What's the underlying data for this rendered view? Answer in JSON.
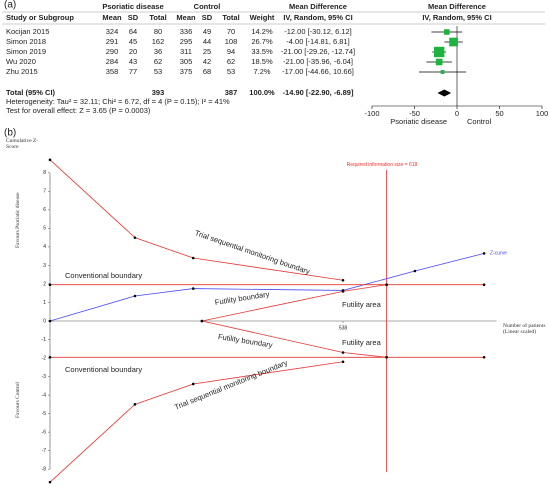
{
  "chart_data": [
    {
      "type": "forest",
      "label": "(a)",
      "group_headers": [
        "Psoriatic disease",
        "Control",
        "Mean Difference",
        "Mean Difference"
      ],
      "columns": [
        "Study or Subgroup",
        "Mean",
        "SD",
        "Total",
        "Mean",
        "SD",
        "Total",
        "Weight",
        "IV, Random, 95% CI",
        "IV, Random, 95% CI"
      ],
      "rows": [
        {
          "study": "Kocijan 2015",
          "exp": [
            324,
            64,
            80
          ],
          "ctrl": [
            336,
            49,
            70
          ],
          "weight": {
            "value": 14.2,
            "label": "14.2%"
          },
          "md": {
            "value": -12,
            "lower": -30.12,
            "upper": 6.12,
            "label": "-12.00 [-30.12, 6.12]"
          }
        },
        {
          "study": "Simon 2018",
          "exp": [
            291,
            45,
            162
          ],
          "ctrl": [
            295,
            44,
            108
          ],
          "weight": {
            "value": 26.7,
            "label": "26.7%"
          },
          "md": {
            "value": -4,
            "lower": -14.81,
            "upper": 6.81,
            "label": "-4.00 [-14.81, 6.81]"
          }
        },
        {
          "study": "Simon 2019",
          "exp": [
            290,
            20,
            36
          ],
          "ctrl": [
            311,
            25,
            94
          ],
          "weight": {
            "value": 33.5,
            "label": "33.5%"
          },
          "md": {
            "value": -21,
            "lower": -29.26,
            "upper": -12.74,
            "label": "-21.00 [-29.26, -12.74]"
          }
        },
        {
          "study": "Wu 2020",
          "exp": [
            284,
            43,
            62
          ],
          "ctrl": [
            305,
            42,
            62
          ],
          "weight": {
            "value": 18.5,
            "label": "18.5%"
          },
          "md": {
            "value": -21,
            "lower": -35.96,
            "upper": -6.04,
            "label": "-21.00 [-35.96, -6.04]"
          }
        },
        {
          "study": "Zhu 2015",
          "exp": [
            358,
            77,
            53
          ],
          "ctrl": [
            375,
            68,
            53
          ],
          "weight": {
            "value": 7.2,
            "label": "7.2%"
          },
          "md": {
            "value": -17,
            "lower": -44.66,
            "upper": 10.66,
            "label": "-17.00 [-44.66, 10.66]"
          }
        }
      ],
      "total": {
        "label": "Total (95% CI)",
        "exp_total": 393,
        "ctrl_total": 387,
        "weight": {
          "value": 100,
          "label": "100.0%"
        },
        "md": {
          "value": -14.9,
          "lower": -22.9,
          "upper": -6.89,
          "label": "-14.90 [-22.90, -6.89]"
        }
      },
      "heterogeneity": "Heterogeneity: Tau² = 32.11; Chi² = 6.72, df = 4 (P = 0.15); I² = 41%",
      "overall_effect": "Test for overall effect: Z = 3.65 (P = 0.0003)",
      "xlim": [
        -100,
        100
      ],
      "xticks": [
        -100,
        -50,
        0,
        50,
        100
      ],
      "xlabels": [
        "Psoriatic disease",
        "Control"
      ],
      "color": "#1db33f"
    },
    {
      "type": "tsa",
      "label": "(b)",
      "ylabel": "Cumulative Z-Score",
      "favours_top": "Favours Psoriatic disease",
      "favours_bottom": "Favours Control",
      "xlabel": "Number of patients (Linear scaled)",
      "xlim": [
        0,
        820
      ],
      "ylim": [
        -8.8,
        8.8
      ],
      "xticks": [
        538
      ],
      "yticks": [
        -8,
        -7,
        -6,
        -5,
        -4,
        -3,
        -2,
        -1,
        0,
        1,
        2,
        3,
        4,
        5,
        6,
        7,
        8
      ],
      "ris": {
        "value": 618,
        "label": "Required information size = 618",
        "color": "#e8352f"
      },
      "series": [
        {
          "label": "Z-curve",
          "color": "#4a4aff",
          "x": [
            0,
            156,
            263,
            538,
            670,
            797
          ],
          "values": [
            0,
            1.35,
            1.75,
            1.65,
            2.7,
            3.65
          ]
        },
        {
          "label": "Trial sequential monitoring boundary",
          "color": "#e8352f",
          "x": [
            0,
            156,
            263,
            538
          ],
          "values": [
            8.7,
            4.5,
            3.4,
            2.2
          ]
        },
        {
          "label": "Trial sequential monitoring boundary",
          "color": "#e8352f",
          "x": [
            0,
            156,
            263,
            538
          ],
          "values": [
            -8.7,
            -4.5,
            -3.4,
            -2.2
          ]
        },
        {
          "label": "Conventional boundary",
          "color": "#e8352f",
          "x": [
            0,
            618,
            797
          ],
          "values": [
            1.96,
            1.96,
            1.96
          ]
        },
        {
          "label": "Conventional boundary",
          "color": "#e8352f",
          "x": [
            0,
            618,
            797
          ],
          "values": [
            -1.96,
            -1.96,
            -1.96
          ]
        },
        {
          "label": "Futility boundary",
          "color": "#e8352f",
          "x": [
            279,
            538,
            618
          ],
          "values": [
            0,
            1.6,
            1.96
          ]
        },
        {
          "label": "Futility boundary",
          "color": "#e8352f",
          "x": [
            279,
            538,
            618
          ],
          "values": [
            0,
            -1.7,
            -1.96
          ]
        }
      ],
      "annotations": [
        "Futility area",
        "Futility area"
      ]
    }
  ]
}
